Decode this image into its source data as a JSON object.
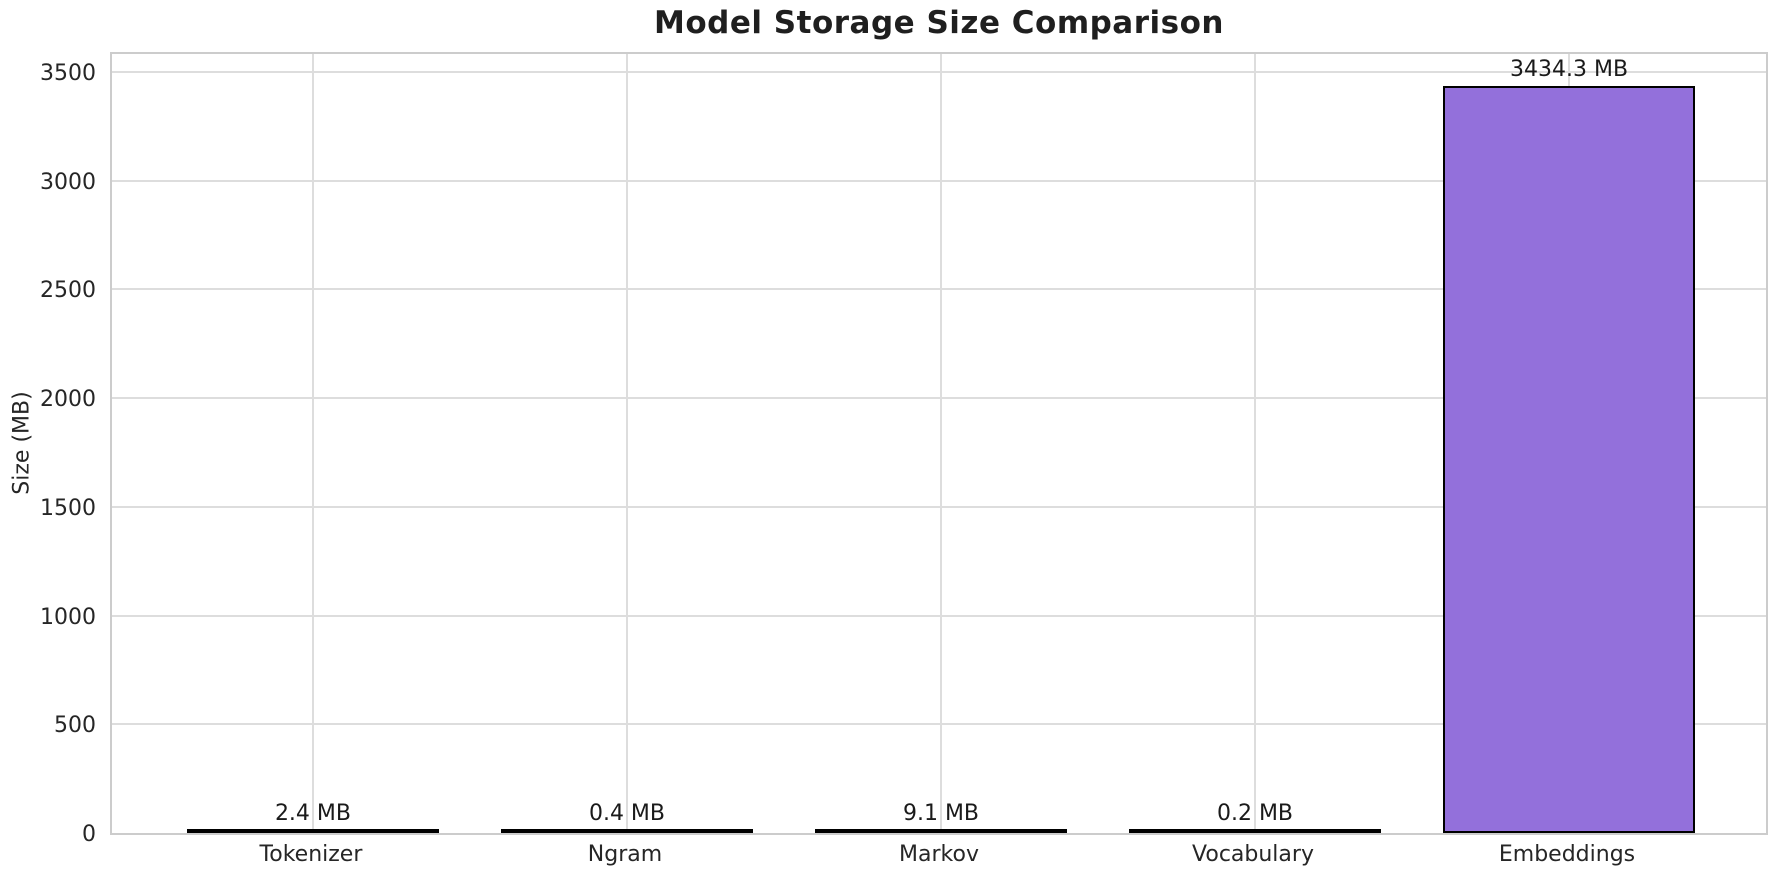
{
  "chart_data": {
    "type": "bar",
    "title": "Model Storage Size Comparison",
    "xlabel": "",
    "ylabel": "Size (MB)",
    "categories": [
      "Tokenizer",
      "Ngram",
      "Markov",
      "Vocabulary",
      "Embeddings"
    ],
    "values": [
      2.4,
      0.4,
      9.1,
      0.2,
      3434.3
    ],
    "bar_labels": [
      "2.4 MB",
      "0.4 MB",
      "9.1 MB",
      "0.2 MB",
      "3434.3 MB"
    ],
    "yticks": [
      0,
      500,
      1000,
      1500,
      2000,
      2500,
      3000,
      3500
    ],
    "ylim": [
      0,
      3600
    ],
    "grid": true,
    "legend": false,
    "colors": {
      "bar_fill": "#9370DB",
      "bar_edge": "#000000",
      "grid": "#dddddd",
      "spine": "#cccccc",
      "text": "#262626",
      "background": "#ffffff"
    }
  }
}
